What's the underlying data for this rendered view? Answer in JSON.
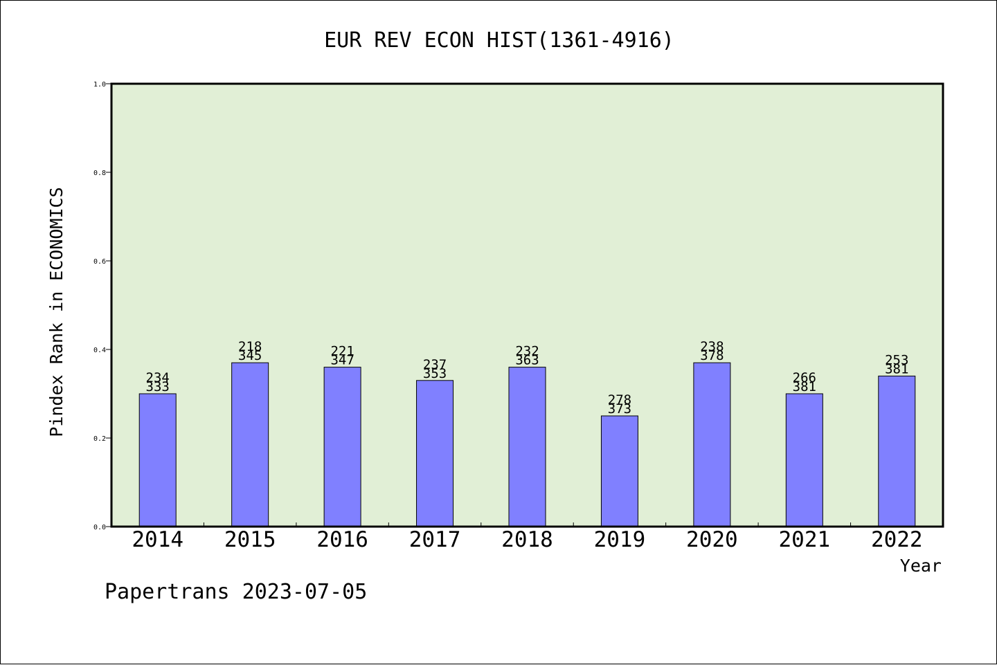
{
  "chart_data": {
    "type": "bar",
    "title": "EUR REV ECON HIST(1361-4916)",
    "xlabel": "Year",
    "ylabel": "Pindex Rank in ECONOMICS",
    "ylim": [
      0,
      1.0
    ],
    "yticks": [
      "0.0",
      "0.2",
      "0.4",
      "0.6",
      "0.8",
      "1.0"
    ],
    "categories": [
      "2014",
      "2015",
      "2016",
      "2017",
      "2018",
      "2019",
      "2020",
      "2021",
      "2022"
    ],
    "values": [
      0.3,
      0.37,
      0.36,
      0.33,
      0.36,
      0.25,
      0.37,
      0.3,
      0.34
    ],
    "labels_top": [
      "234",
      "218",
      "221",
      "237",
      "232",
      "278",
      "238",
      "266",
      "253"
    ],
    "labels_bottom": [
      "333",
      "345",
      "347",
      "353",
      "363",
      "373",
      "378",
      "381",
      "381"
    ],
    "grid": false,
    "colors": {
      "bar": "#8080ff",
      "plot_bg": "#e1efd6"
    }
  },
  "footer": "Papertrans 2023-07-05"
}
